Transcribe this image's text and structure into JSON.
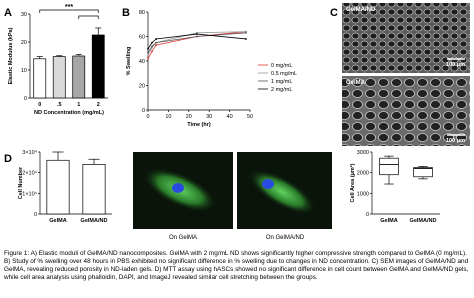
{
  "panel_labels": [
    "A",
    "B",
    "C",
    "D"
  ],
  "sem_images": [
    {
      "label": "GelMA/ND",
      "scale": "100 μm"
    },
    {
      "label": "GelMA",
      "scale": "100 μm"
    }
  ],
  "cell_images": [
    {
      "label": "On GelMA"
    },
    {
      "label": "On GelMA/ND"
    }
  ],
  "caption": "Figure 1: A) Elastic moduli of GelMA/ND nanocomposites. GelMA with 2 mg/mL ND shows significantly higher compressive strength compared to GelMA (0 mg/mL). B) Study of % swelling over 48 hours in PBS exhibited no significant difference in % swelling due to changes in ND concentration. C) SEM images of GelMA/ND and GelMA, revealing reduced porosity in ND-laden gels. D) MTT assay using hASCs showed no significant difference in cell count between GelMA and GelMA/ND gels, while cell area analysis using phalloidin, DAPI, and ImageJ revealed similar cell stretching between the groups.",
  "chart_data": [
    {
      "type": "bar",
      "ylabel": "Elastic Modulus (kPa)",
      "xlabel": "ND  Concentration (mg/mL)",
      "categories": [
        "0",
        ".5",
        "1",
        "2"
      ],
      "values": [
        14,
        14.8,
        15,
        22.5
      ],
      "errors": [
        0.8,
        0.3,
        0.5,
        2.5
      ],
      "colors": [
        "#ffffff",
        "#d9d9d9",
        "#a6a6a6",
        "#000000"
      ],
      "ylim": [
        0,
        30
      ],
      "yticks": [
        0,
        10,
        20,
        30
      ],
      "annotations": [
        "***"
      ]
    },
    {
      "type": "line",
      "ylabel": "% Swelling",
      "xlabel": "Time (hr)",
      "x": [
        0,
        2,
        4,
        24,
        48
      ],
      "xlim": [
        0,
        50
      ],
      "xticks": [
        0,
        10,
        20,
        30,
        40,
        50
      ],
      "ylim": [
        0,
        80
      ],
      "yticks": [
        0,
        20,
        40,
        60,
        80
      ],
      "legend": "right",
      "series": [
        {
          "name": "0 mg/mL",
          "color": "#e03030",
          "values": [
            42,
            48,
            53,
            60,
            64
          ]
        },
        {
          "name": "0.5 mg/mL",
          "color": "#999999",
          "values": [
            45,
            51,
            55,
            63,
            64
          ]
        },
        {
          "name": "1 mg/mL",
          "color": "#555555",
          "values": [
            47,
            52,
            55,
            60,
            63
          ]
        },
        {
          "name": "2 mg/mL",
          "color": "#000000",
          "values": [
            50,
            55,
            58,
            62,
            58
          ]
        }
      ]
    },
    {
      "type": "bar",
      "ylabel": "Cell Number",
      "categories": [
        "GelMA",
        "GelMA/ND"
      ],
      "values": [
        26000,
        24000
      ],
      "errors": [
        4000,
        2500
      ],
      "colors": [
        "#ffffff",
        "#ffffff"
      ],
      "ylim": [
        0,
        30000
      ],
      "yticks": [
        0,
        {
          "value": 10000,
          "label": "1×10⁴"
        },
        {
          "value": 20000,
          "label": "2×10⁴"
        },
        {
          "value": 30000,
          "label": "3×10⁴"
        }
      ]
    },
    {
      "type": "box",
      "ylabel": "Cell Area (μm²)",
      "categories": [
        "GelMA",
        "GelMA/ND"
      ],
      "boxes": [
        {
          "min": 1450,
          "q1": 1900,
          "median": 2400,
          "q3": 2700,
          "max": 2800
        },
        {
          "min": 1700,
          "q1": 1800,
          "median": 2200,
          "q3": 2250,
          "max": 2300
        }
      ],
      "ylim": [
        0,
        3000
      ],
      "yticks": [
        0,
        1000,
        2000,
        3000
      ]
    }
  ]
}
